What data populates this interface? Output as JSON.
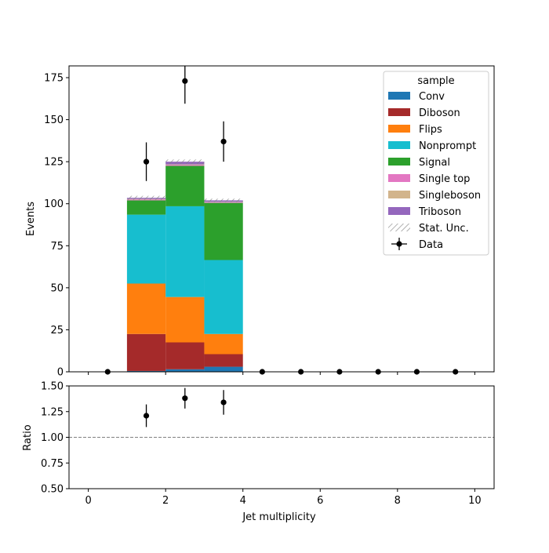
{
  "chart_data": [
    {
      "type": "bar",
      "stacked": true,
      "xlabel": "",
      "ylabel": "Events",
      "xlim": [
        -0.5,
        10.5
      ],
      "ylim": [
        0,
        182
      ],
      "yticks": [
        0,
        25,
        50,
        75,
        100,
        125,
        150,
        175
      ],
      "grid": false,
      "legend": {
        "title": "sample",
        "placement": "top-right",
        "entries": [
          "Conv",
          "Diboson",
          "Flips",
          "Nonprompt",
          "Signal",
          "Single top",
          "Singleboson",
          "Triboson",
          "Stat. Unc.",
          "Data"
        ]
      },
      "bin_edges": [
        1,
        2,
        3,
        4
      ],
      "series": [
        {
          "name": "Conv",
          "color": "#1f77b4",
          "values": [
            0.5,
            1.5,
            3
          ]
        },
        {
          "name": "Diboson",
          "color": "#a52a2a",
          "values": [
            22,
            16,
            7.5
          ]
        },
        {
          "name": "Flips",
          "color": "#ff7f0e",
          "values": [
            30,
            27,
            12
          ]
        },
        {
          "name": "Nonprompt",
          "color": "#17becf",
          "values": [
            41,
            54,
            44
          ]
        },
        {
          "name": "Signal",
          "color": "#2ca02c",
          "values": [
            8.5,
            24,
            34
          ]
        },
        {
          "name": "Single top",
          "color": "#e377c2",
          "values": [
            0.5,
            0.6,
            0.4
          ]
        },
        {
          "name": "Singleboson",
          "color": "#d2b48c",
          "values": [
            0.3,
            0.3,
            0.2
          ]
        },
        {
          "name": "Triboson",
          "color": "#9467bd",
          "values": [
            0.7,
            1.6,
            0.9
          ]
        }
      ],
      "stat_unc": [
        1.2,
        1.3,
        1.0
      ],
      "data": {
        "name": "Data",
        "x": [
          0.5,
          1.5,
          2.5,
          3.5,
          4.5,
          5.5,
          6.5,
          7.5,
          8.5,
          9.5
        ],
        "y": [
          0,
          125,
          173,
          137,
          0,
          0,
          0,
          0,
          0,
          0
        ],
        "yerr": [
          0,
          11.5,
          13.5,
          12,
          0,
          0,
          0,
          0,
          0,
          0
        ]
      }
    },
    {
      "type": "scatter",
      "xlabel": "Jet multiplicity",
      "ylabel": "Ratio",
      "xlim": [
        -0.5,
        10.5
      ],
      "ylim": [
        0.5,
        1.5
      ],
      "xticks": [
        0,
        2,
        4,
        6,
        8,
        10
      ],
      "yticks": [
        0.5,
        0.75,
        1.0,
        1.25,
        1.5
      ],
      "ytick_labels": [
        "0.50",
        "0.75",
        "1.00",
        "1.25",
        "1.50"
      ],
      "reference_line": 1.0,
      "grid": false,
      "points": {
        "x": [
          1.5,
          2.5,
          3.5
        ],
        "y": [
          1.21,
          1.38,
          1.34
        ],
        "yerr": [
          0.11,
          0.1,
          0.12
        ]
      }
    }
  ],
  "colors": {
    "stat_unc": "#808080",
    "data_marker": "#000000",
    "reference_line": "#808080"
  }
}
